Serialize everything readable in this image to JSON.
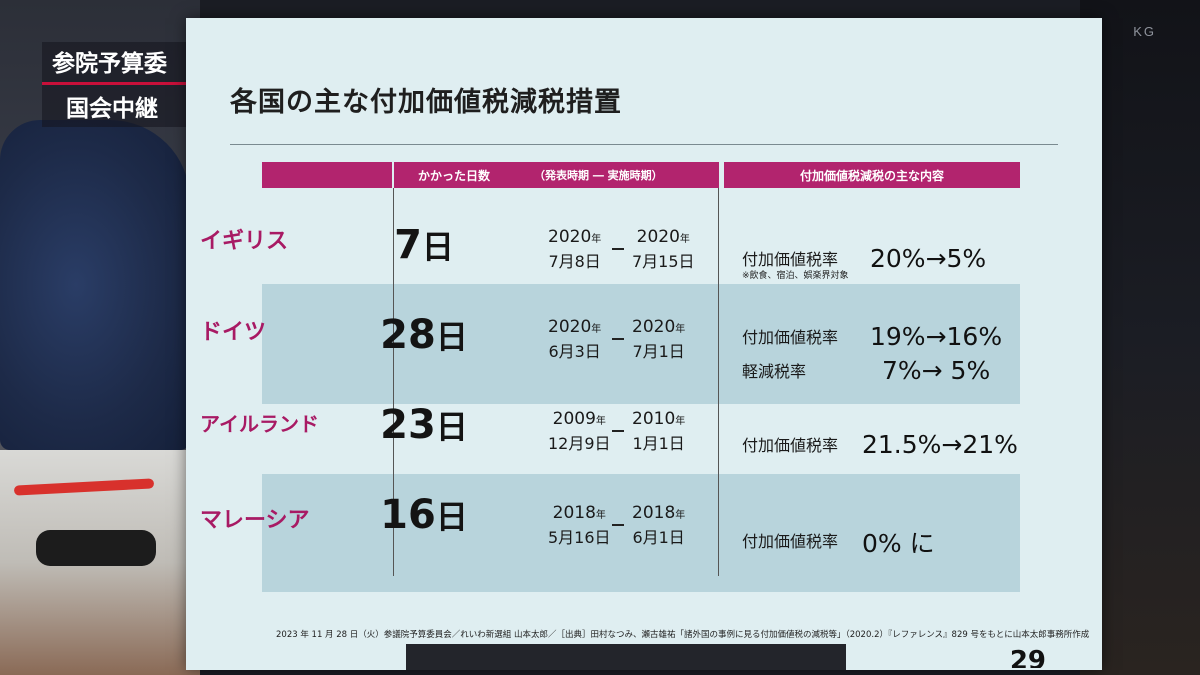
{
  "caption": {
    "line1": "参院予算委",
    "line2": "国会中継"
  },
  "corner_logo": "KG",
  "slide": {
    "title": "各国の主な付加価値税減税措置",
    "headers": {
      "days": "かかった日数",
      "period": "（発表時期 ― 実施時期）",
      "content": "付加価値税減税の主な内容"
    },
    "year_unit": "年",
    "rows": [
      {
        "country": "イギリス",
        "days": "7",
        "days_unit": "日",
        "announce": {
          "year": "2020",
          "md": "7月8日"
        },
        "implement": {
          "year": "2020",
          "md": "7月15日"
        },
        "content": [
          {
            "label": "付加価値税率",
            "rate": "20%→5%"
          }
        ],
        "note": "※飲食、宿泊、娯楽界対象"
      },
      {
        "country": "ドイツ",
        "days": "28",
        "days_unit": "日",
        "announce": {
          "year": "2020",
          "md": "6月3日"
        },
        "implement": {
          "year": "2020",
          "md": "7月1日"
        },
        "content": [
          {
            "label": "付加価値税率",
            "rate": "19%→16%"
          },
          {
            "label": "軽減税率",
            "rate": "7%→ 5%"
          }
        ]
      },
      {
        "country": "アイルランド",
        "days": "23",
        "days_unit": "日",
        "announce": {
          "year": "2009",
          "md": "12月9日"
        },
        "implement": {
          "year": "2010",
          "md": "1月1日"
        },
        "content": [
          {
            "label": "付加価値税率",
            "rate": "21.5%→21%"
          }
        ]
      },
      {
        "country": "マレーシア",
        "days": "16",
        "days_unit": "日",
        "announce": {
          "year": "2018",
          "md": "5月16日"
        },
        "implement": {
          "year": "2018",
          "md": "6月1日"
        },
        "content": [
          {
            "label": "付加価値税率",
            "rate": "0% に"
          }
        ]
      }
    ],
    "footer": "2023 年 11 月 28 日（火）参議院予算委員会／れいわ新選組 山本太郎／［出典］田村なつみ、瀬古雄祐「諸外国の事例に見る付加価値税の減税等」（2020.2）『レファレンス』829 号をもとに山本太郎事務所作成",
    "page_number": "29"
  },
  "colors": {
    "header_magenta": "#b2246e",
    "country_text": "#a81a64",
    "row_shade": "#b8d4dc",
    "slide_bg": "#dfeef1"
  }
}
